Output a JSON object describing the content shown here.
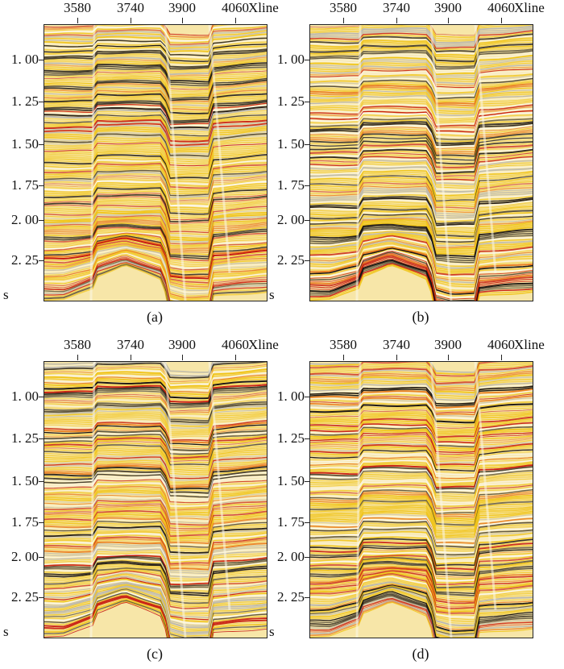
{
  "panels": [
    {
      "caption": "(a)",
      "variant": 0
    },
    {
      "caption": "(b)",
      "variant": 1
    },
    {
      "caption": "(c)",
      "variant": 2
    },
    {
      "caption": "(d)",
      "variant": 3
    }
  ],
  "x_axis": {
    "ticks": [
      "3580",
      "3740",
      "3900",
      "4060"
    ],
    "unit": "Xline"
  },
  "y_axis": {
    "ticks": [
      "1. 00",
      "1. 25",
      "1. 50",
      "1. 75",
      "2. 00",
      "2. 25"
    ],
    "unit": "s"
  },
  "colors": {
    "light": "#f7e6a8",
    "yellow": "#f0c419",
    "orange": "#e8791a",
    "red": "#c81e10",
    "dark": "#1a1410",
    "grey": "#b9b6ad",
    "white": "#fbf7ea"
  }
}
